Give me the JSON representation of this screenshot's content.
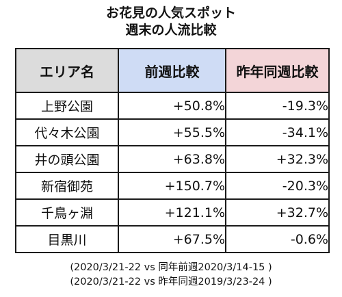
{
  "title": {
    "line1": "お花見の人気スポット",
    "line2": "週末の人流比較"
  },
  "headers": {
    "area": "エリア名",
    "week": "前週比較",
    "year": "昨年同週比較"
  },
  "rows": [
    {
      "area": "上野公園",
      "week": "+50.8%",
      "year": "-19.3%"
    },
    {
      "area": "代々木公園",
      "week": "+55.5%",
      "year": "-34.1%"
    },
    {
      "area": "井の頭公園",
      "week": "+63.8%",
      "year": "+32.3%"
    },
    {
      "area": "新宿御苑",
      "week": "+150.7%",
      "year": "-20.3%"
    },
    {
      "area": "千鳥ヶ淵",
      "week": "+121.1%",
      "year": "+32.7%"
    },
    {
      "area": "目黒川",
      "week": "+67.5%",
      "year": "-0.6%"
    }
  ],
  "notes": [
    "(2020/3/21-22 vs 同年前週2020/3/14-15 )",
    "(2020/3/21-22 vs 昨年同週2019/3/23-24 )"
  ],
  "colors": {
    "header_area_bg": "#dcdcdc",
    "header_week_bg": "#cfdcf5",
    "header_year_bg": "#f3d5d8",
    "border": "#1a1a1a"
  }
}
